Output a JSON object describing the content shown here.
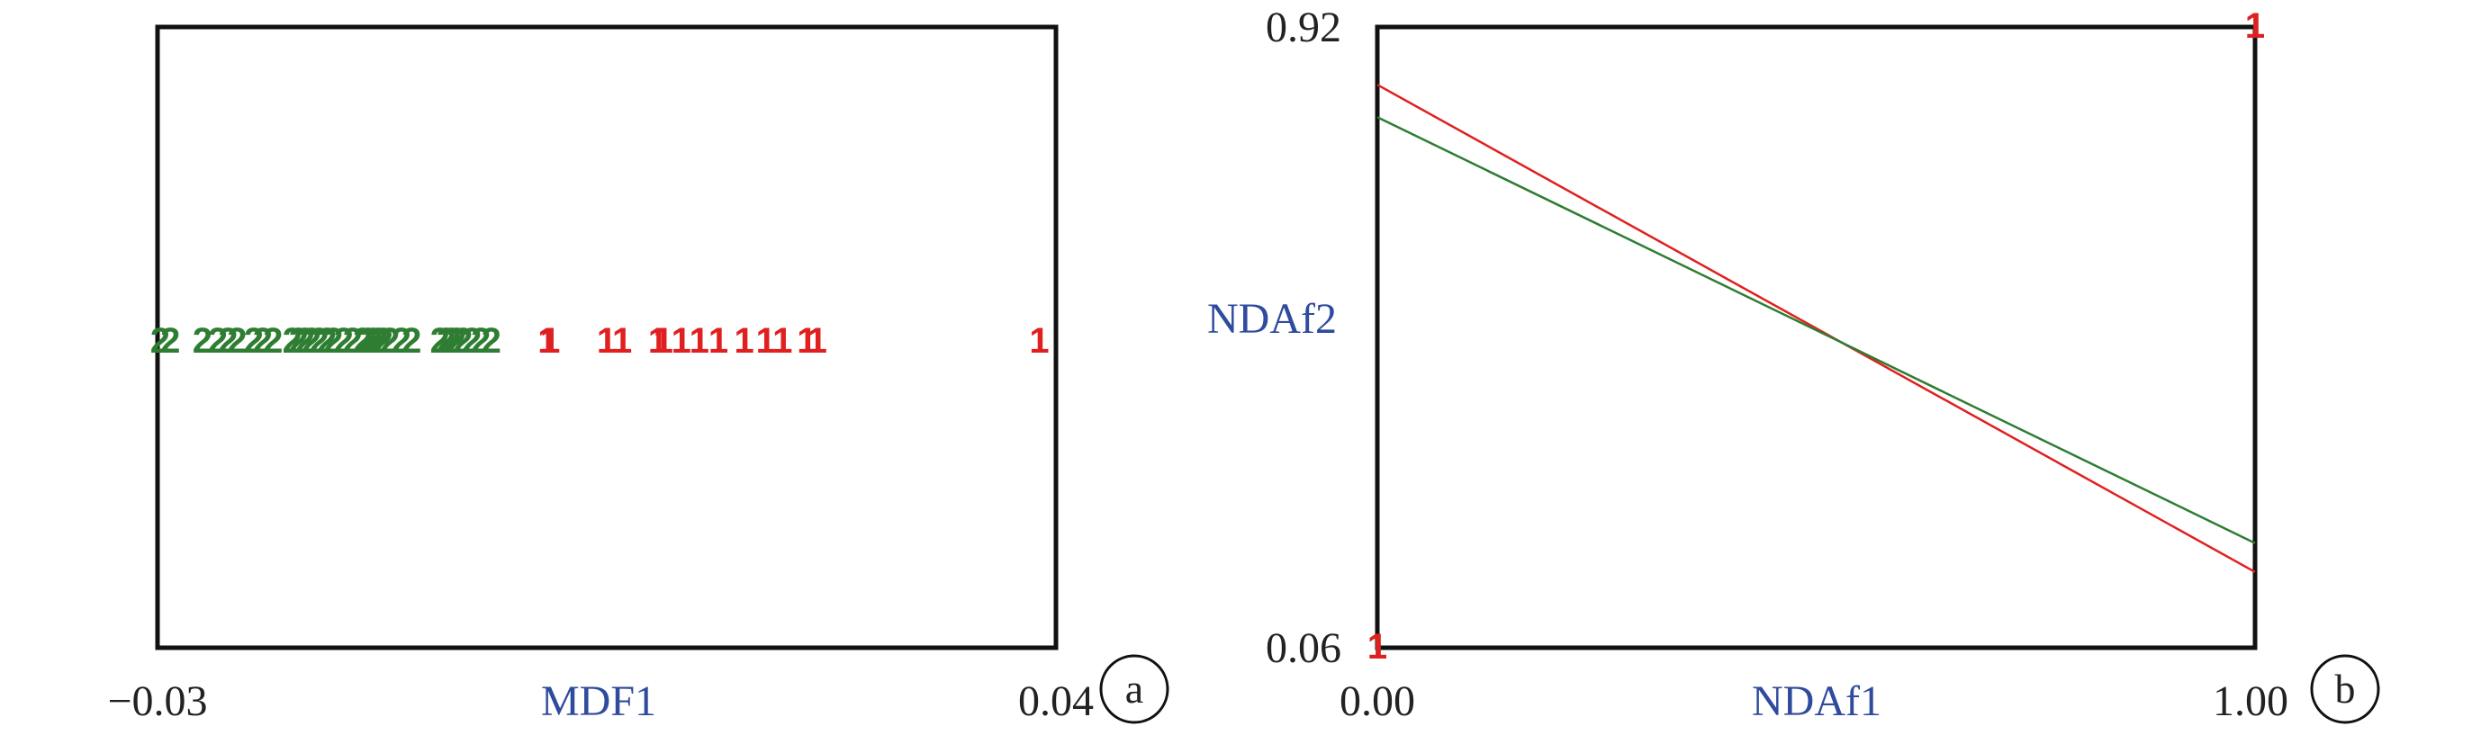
{
  "colors": {
    "class1": "#e02020",
    "class2": "#2e7d32",
    "label": "#2f4b9e"
  },
  "chart_data": [
    {
      "type": "scatter",
      "panel_label": "a",
      "xlabel": "MDF1",
      "xlim": [
        -0.03,
        0.04
      ],
      "xticks": [
        "−0.03",
        "0.04"
      ],
      "grid": false,
      "series": [
        {
          "marker": "2",
          "color": "#2e7d32",
          "x": [
            -0.0298,
            -0.029,
            -0.0265,
            -0.0253,
            -0.0245,
            -0.0238,
            -0.0225,
            -0.0218,
            -0.021,
            -0.0195,
            -0.019,
            -0.0185,
            -0.018,
            -0.0174,
            -0.0168,
            -0.0163,
            -0.0155,
            -0.0148,
            -0.014,
            -0.0136,
            -0.0132,
            -0.0128,
            -0.0124,
            -0.0119,
            -0.011,
            -0.0102,
            -0.008,
            -0.0075,
            -0.0071,
            -0.0067,
            -0.0062,
            -0.0055,
            -0.0048,
            -0.004
          ]
        },
        {
          "marker": "1",
          "color": "#e02020",
          "x": [
            0.0004,
            0.0006,
            0.005,
            0.0062,
            0.009,
            0.0094,
            0.0108,
            0.0122,
            0.0137,
            0.0157,
            0.0174,
            0.0187,
            0.0206,
            0.0214,
            0.0387
          ]
        }
      ]
    },
    {
      "type": "line",
      "panel_label": "b",
      "xlabel": "NDAf1",
      "ylabel": "NDAf2",
      "xlim": [
        0.0,
        1.0
      ],
      "ylim": [
        0.06,
        0.92
      ],
      "xticks": [
        "0.00",
        "1.00"
      ],
      "yticks": [
        "0.06",
        "0.92"
      ],
      "grid": false,
      "series": [
        {
          "color": "#e02020",
          "x": [
            0.0,
            1.0
          ],
          "y": [
            0.84,
            0.165
          ]
        },
        {
          "color": "#2e7d32",
          "x": [
            0.0,
            1.0
          ],
          "y": [
            0.795,
            0.205
          ]
        }
      ],
      "points": [
        {
          "marker": "1",
          "color": "#2e7d32",
          "x": 0.0,
          "y": 0.06
        },
        {
          "marker": "1",
          "color": "#2e7d32",
          "x": 1.0,
          "y": 0.92
        },
        {
          "marker": "1",
          "color": "#e02020",
          "x": 0.0,
          "y": 0.06
        },
        {
          "marker": "1",
          "color": "#e02020",
          "x": 1.0,
          "y": 0.92
        }
      ]
    }
  ]
}
